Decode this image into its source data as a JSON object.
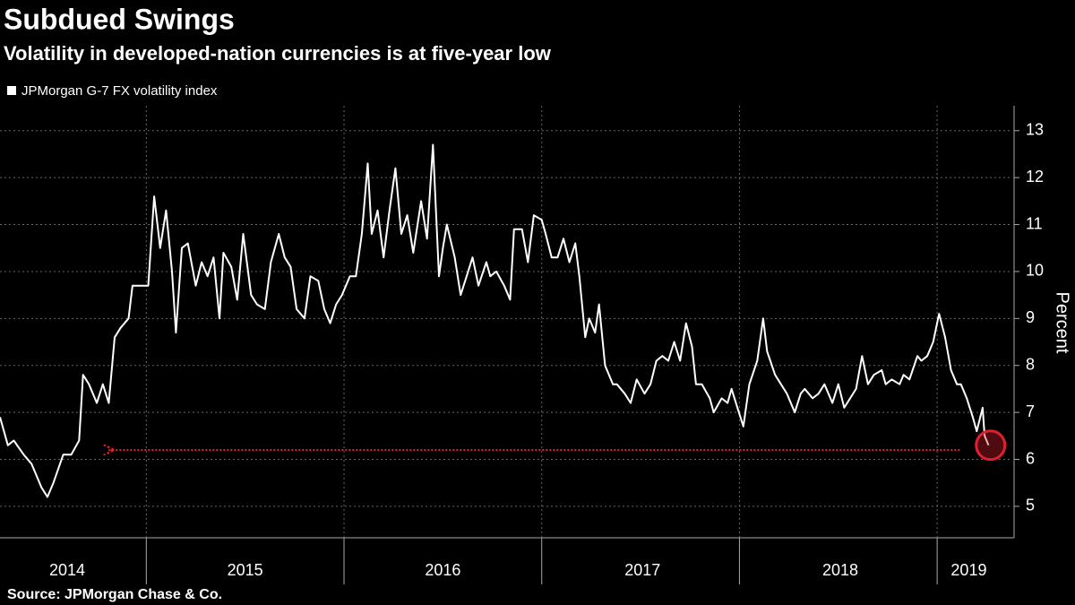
{
  "chart_data": {
    "type": "line",
    "title": "Subdued Swings",
    "subtitle": "Volatility in developed-nation currencies is at five-year low",
    "y_label": "Percent",
    "source": "Source: JPMorgan Chase & Co.",
    "series": [
      {
        "name": "JPMorgan G-7 FX volatility index",
        "color": "#ffffff",
        "x": [
          2014.26,
          2014.3,
          2014.33,
          2014.38,
          2014.42,
          2014.47,
          2014.5,
          2014.53,
          2014.58,
          2014.62,
          2014.66,
          2014.68,
          2014.71,
          2014.75,
          2014.78,
          2014.81,
          2014.84,
          2014.87,
          2014.91,
          2014.93,
          2014.96,
          2015.01,
          2015.04,
          2015.07,
          2015.1,
          2015.13,
          2015.15,
          2015.18,
          2015.21,
          2015.25,
          2015.28,
          2015.31,
          2015.34,
          2015.37,
          2015.39,
          2015.43,
          2015.46,
          2015.49,
          2015.53,
          2015.56,
          2015.6,
          2015.63,
          2015.67,
          2015.7,
          2015.73,
          2015.76,
          2015.8,
          2015.83,
          2015.87,
          2015.9,
          2015.93,
          2015.96,
          2015.99,
          2016.03,
          2016.06,
          2016.09,
          2016.12,
          2016.14,
          2016.17,
          2016.2,
          2016.23,
          2016.26,
          2016.29,
          2016.32,
          2016.35,
          2016.39,
          2016.42,
          2016.45,
          2016.48,
          2016.5,
          2016.52,
          2016.56,
          2016.59,
          2016.62,
          2016.65,
          2016.68,
          2016.72,
          2016.74,
          2016.77,
          2016.81,
          2016.84,
          2016.86,
          2016.9,
          2016.93,
          2016.96,
          2017.0,
          2017.02,
          2017.05,
          2017.08,
          2017.11,
          2017.14,
          2017.17,
          2017.19,
          2017.22,
          2017.24,
          2017.27,
          2017.29,
          2017.32,
          2017.36,
          2017.38,
          2017.42,
          2017.45,
          2017.48,
          2017.52,
          2017.55,
          2017.58,
          2017.61,
          2017.64,
          2017.67,
          2017.7,
          2017.73,
          2017.76,
          2017.78,
          2017.81,
          2017.85,
          2017.87,
          2017.91,
          2017.94,
          2017.96,
          2017.99,
          2018.02,
          2018.05,
          2018.09,
          2018.12,
          2018.14,
          2018.18,
          2018.21,
          2018.24,
          2018.28,
          2018.31,
          2018.33,
          2018.37,
          2018.4,
          2018.43,
          2018.47,
          2018.5,
          2018.53,
          2018.56,
          2018.59,
          2018.62,
          2018.65,
          2018.68,
          2018.72,
          2018.74,
          2018.77,
          2018.81,
          2018.83,
          2018.86,
          2018.9,
          2018.92,
          2018.95,
          2018.98,
          2019.01,
          2019.04,
          2019.07,
          2019.1,
          2019.12,
          2019.15,
          2019.18,
          2019.2,
          2019.23,
          2019.24,
          2019.26
        ],
        "values": [
          6.9,
          6.3,
          6.4,
          6.1,
          5.9,
          5.4,
          5.2,
          5.5,
          6.1,
          6.1,
          6.4,
          7.8,
          7.6,
          7.2,
          7.6,
          7.2,
          8.6,
          8.8,
          9.0,
          9.7,
          9.7,
          9.7,
          11.6,
          10.5,
          11.3,
          10.0,
          8.7,
          10.5,
          10.6,
          9.7,
          10.2,
          9.9,
          10.3,
          9.0,
          10.4,
          10.1,
          9.4,
          10.8,
          9.5,
          9.3,
          9.2,
          10.2,
          10.8,
          10.3,
          10.1,
          9.2,
          9.0,
          9.9,
          9.8,
          9.2,
          8.9,
          9.3,
          9.5,
          9.9,
          9.9,
          10.8,
          12.3,
          10.8,
          11.3,
          10.3,
          11.3,
          12.2,
          10.8,
          11.2,
          10.4,
          11.5,
          10.7,
          12.7,
          9.9,
          10.5,
          11.0,
          10.3,
          9.5,
          9.9,
          10.3,
          9.7,
          10.2,
          9.9,
          10.0,
          9.7,
          9.4,
          10.9,
          10.9,
          10.2,
          11.2,
          11.1,
          10.8,
          10.3,
          10.3,
          10.7,
          10.2,
          10.6,
          9.9,
          8.6,
          9.0,
          8.7,
          9.3,
          8.0,
          7.6,
          7.6,
          7.4,
          7.2,
          7.7,
          7.4,
          7.6,
          8.1,
          8.2,
          8.1,
          8.5,
          8.1,
          8.9,
          8.4,
          7.6,
          7.6,
          7.3,
          7.0,
          7.3,
          7.2,
          7.5,
          7.1,
          6.7,
          7.6,
          8.1,
          9.0,
          8.3,
          7.8,
          7.6,
          7.4,
          7.0,
          7.4,
          7.5,
          7.3,
          7.4,
          7.6,
          7.2,
          7.6,
          7.1,
          7.3,
          7.5,
          8.2,
          7.6,
          7.8,
          7.9,
          7.6,
          7.7,
          7.6,
          7.8,
          7.7,
          8.2,
          8.1,
          8.2,
          8.5,
          9.1,
          8.6,
          7.9,
          7.6,
          7.6,
          7.3,
          6.9,
          6.6,
          7.1,
          6.5,
          6.3
        ]
      }
    ],
    "xlim": [
      2014.26,
      2019.38
    ],
    "xticks": [
      {
        "value": 2014.6,
        "label": "2014"
      },
      {
        "value": 2015.5,
        "label": "2015"
      },
      {
        "value": 2016.5,
        "label": "2016"
      },
      {
        "value": 2017.51,
        "label": "2017"
      },
      {
        "value": 2018.51,
        "label": "2018"
      },
      {
        "value": 2019.16,
        "label": "2019"
      }
    ],
    "xgrid": [
      2015,
      2016,
      2017,
      2018,
      2019
    ],
    "ylim": [
      4.33,
      13.53
    ],
    "yticks": [
      5,
      6,
      7,
      8,
      9,
      10,
      11,
      12,
      13
    ],
    "grid": true,
    "reference_line": {
      "y": 6.2,
      "x": [
        2014.81,
        2019.12
      ],
      "color": "#e0202e"
    },
    "highlight_point": {
      "x": 2019.27,
      "y": 6.3,
      "color": "#e0202e"
    }
  }
}
